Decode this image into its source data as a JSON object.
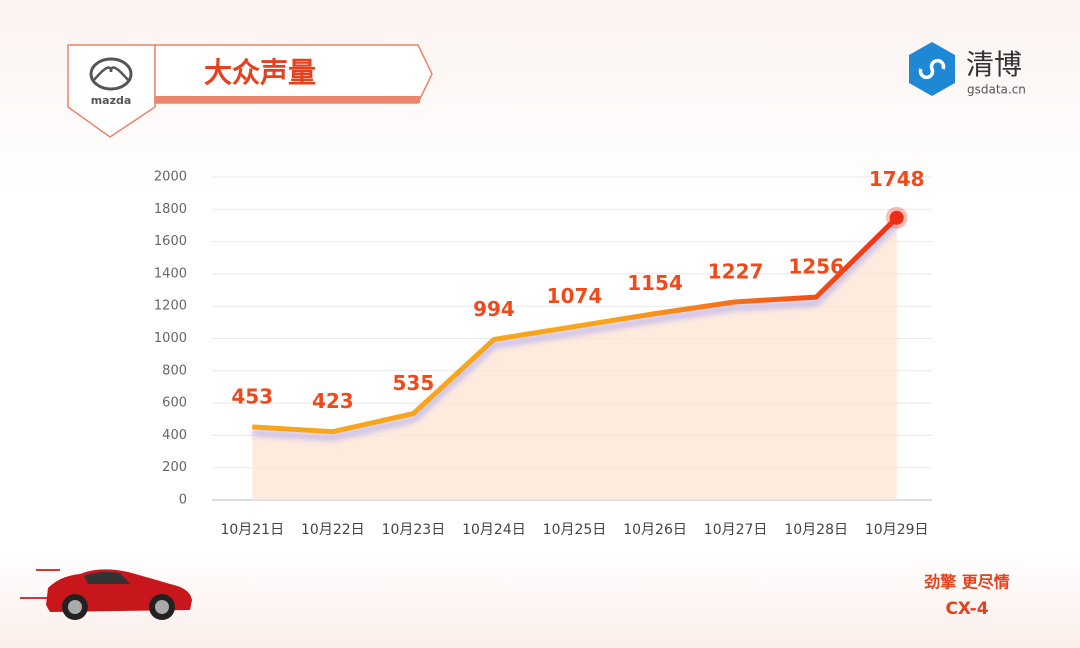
{
  "header": {
    "logo_text": "mazda",
    "title": "大众声量",
    "brand": "清博",
    "site": "gsdata.cn"
  },
  "chart_data": {
    "type": "line",
    "categories": [
      "10月21日",
      "10月22日",
      "10月23日",
      "10月24日",
      "10月25日",
      "10月26日",
      "10月27日",
      "10月28日",
      "10月29日"
    ],
    "values": [
      453,
      423,
      535,
      994,
      1074,
      1154,
      1227,
      1256,
      1748
    ],
    "ylim": [
      0,
      2000
    ],
    "yticks": [
      0,
      200,
      400,
      600,
      800,
      1000,
      1200,
      1400,
      1600,
      1800,
      2000
    ],
    "grid": true,
    "color": [
      "#f7a51c",
      "#ee2d16"
    ],
    "area_color": "#fde3d0",
    "label_color": "#ee4a1c"
  },
  "footer": {
    "tagline": "劲擎 更尽情",
    "model": "CX-4"
  }
}
